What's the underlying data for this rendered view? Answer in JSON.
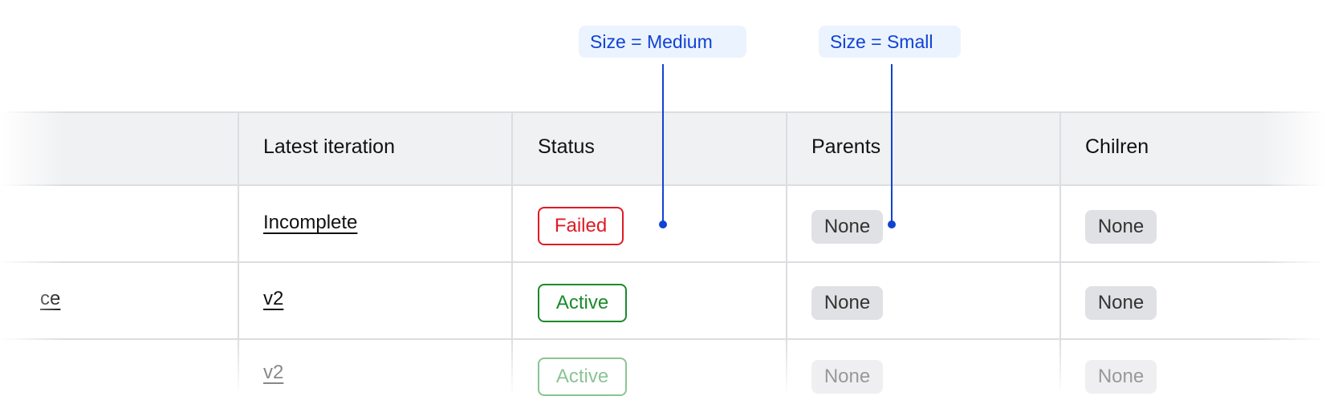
{
  "table": {
    "headers": [
      "Latest iteration",
      "Status",
      "Parents",
      "Chilren"
    ],
    "rows": [
      {
        "name": "",
        "iteration": "Incomplete",
        "status": "Failed",
        "parents": "None",
        "children": "None"
      },
      {
        "name": "ce",
        "iteration": "v2",
        "status": "Active",
        "parents": "None",
        "children": "None"
      },
      {
        "name": "",
        "iteration": "v2",
        "status": "Active",
        "parents": "None",
        "children": "None"
      }
    ]
  },
  "annotations": {
    "medium": "Size = Medium",
    "small": "Size = Small"
  },
  "colors": {
    "failed": "#e01b24",
    "active": "#1a8a2a",
    "annotation": "#1142d4",
    "header_bg": "#f0f1f3"
  }
}
